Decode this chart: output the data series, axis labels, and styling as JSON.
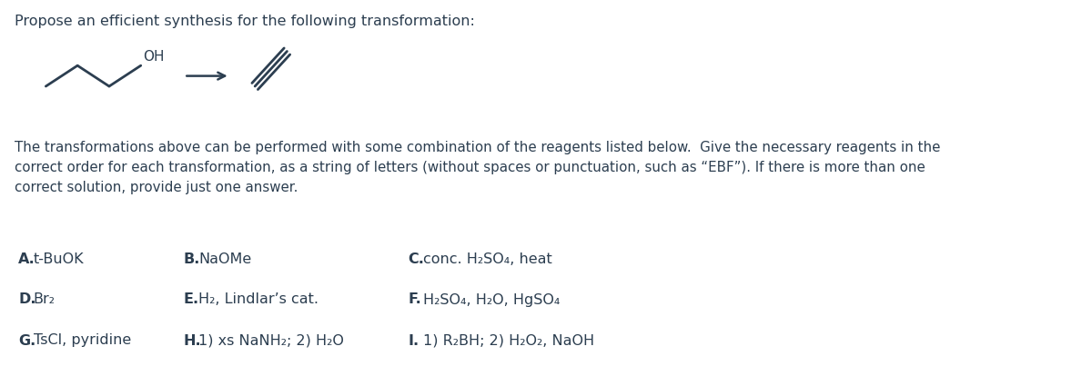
{
  "title": "Propose an efficient synthesis for the following transformation:",
  "body_text": "The transformations above can be performed with some combination of the reagents listed below.  Give the necessary reagents in the\ncorrect order for each transformation, as a string of letters (without spaces or punctuation, such as “EBF”). If there is more than one\ncorrect solution, provide just one answer.",
  "reagents": [
    {
      "letter": "A.",
      "text": "t-BuOK",
      "col": 0,
      "row": 0
    },
    {
      "letter": "B.",
      "text": "NaOMe",
      "col": 1,
      "row": 0
    },
    {
      "letter": "C.",
      "text": "conc. H₂SO₄, heat",
      "col": 2,
      "row": 0
    },
    {
      "letter": "D.",
      "text": "Br₂",
      "col": 0,
      "row": 1
    },
    {
      "letter": "E.",
      "text": "H₂, Lindlar’s cat.",
      "col": 1,
      "row": 1
    },
    {
      "letter": "F.",
      "text": "H₂SO₄, H₂O, HgSO₄",
      "col": 2,
      "row": 1
    },
    {
      "letter": "G.",
      "text": "TsCl, pyridine",
      "col": 0,
      "row": 2
    },
    {
      "letter": "H.",
      "text": "1) xs NaNH₂; 2) H₂O",
      "col": 1,
      "row": 2
    },
    {
      "letter": "I.",
      "text": "1) R₂BH; 2) H₂O₂, NaOH",
      "col": 2,
      "row": 2
    }
  ],
  "background_color": "#ffffff",
  "text_color": "#2c3e50",
  "font_size_title": 11.5,
  "font_size_body": 10.8,
  "font_size_reagents": 11.5
}
